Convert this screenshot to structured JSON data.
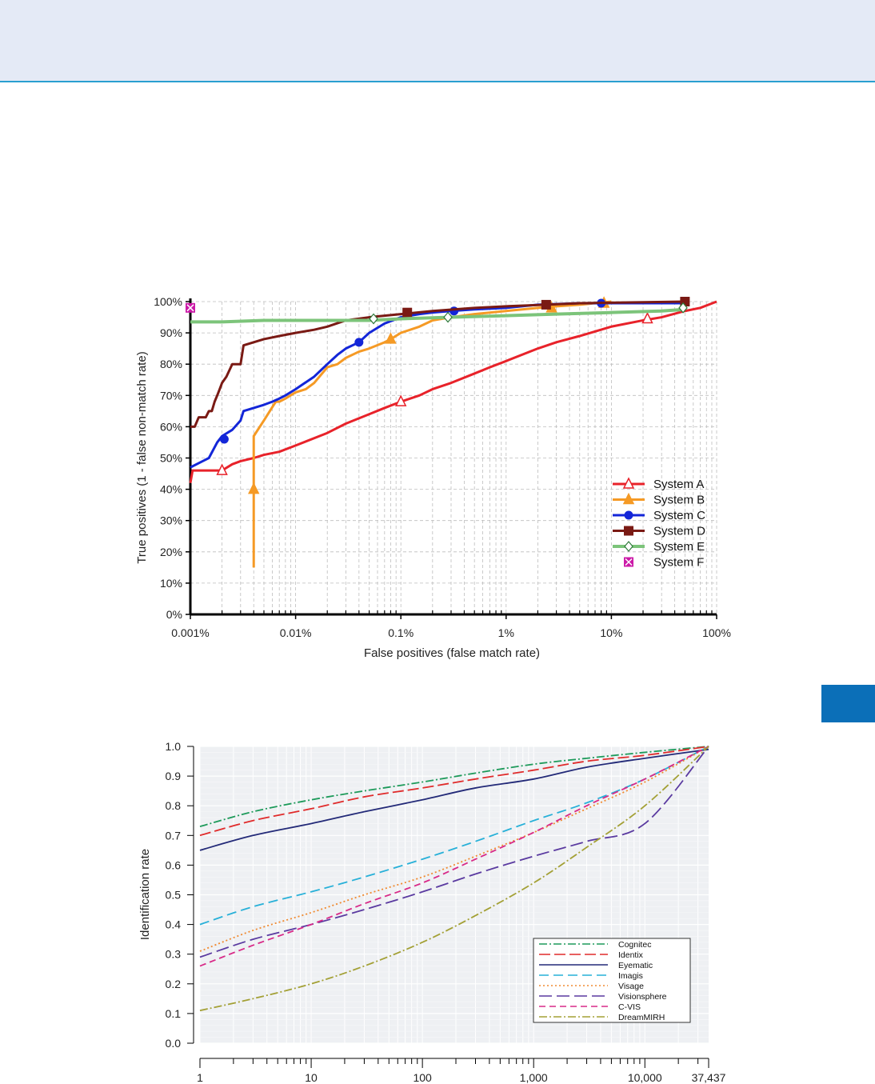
{
  "colors": {
    "header_band": "#e4eaf6",
    "header_rule": "#2a9fd0",
    "side_tab": "#0b6fb8"
  },
  "chart_data": [
    {
      "type": "line",
      "title": "",
      "xlabel": "False positives (false match rate)",
      "ylabel": "True positives (1 - false non-match rate)",
      "x_scale": "log",
      "xlim": [
        0.001,
        100
      ],
      "ylim": [
        0,
        100
      ],
      "x_ticks": [
        0.001,
        0.01,
        0.1,
        1,
        10,
        100
      ],
      "x_tick_labels": [
        "0.001%",
        "0.01%",
        "0.1%",
        "1%",
        "10%",
        "100%"
      ],
      "y_ticks": [
        0,
        10,
        20,
        30,
        40,
        50,
        60,
        70,
        80,
        90,
        100
      ],
      "y_tick_labels": [
        "0%",
        "10%",
        "20%",
        "30%",
        "40%",
        "50%",
        "60%",
        "70%",
        "80%",
        "90%",
        "100%"
      ],
      "grid": true,
      "legend_position": "bottom-right",
      "series": [
        {
          "name": "System A",
          "color": "#e8222a",
          "marker": "triangle-open",
          "x": [
            0.001,
            0.00105,
            0.0011,
            0.0015,
            0.002,
            0.0025,
            0.003,
            0.004,
            0.005,
            0.007,
            0.01,
            0.02,
            0.03,
            0.05,
            0.07,
            0.1,
            0.15,
            0.2,
            0.3,
            0.5,
            0.7,
            1,
            2,
            3,
            5,
            10,
            20,
            30,
            50,
            70,
            100
          ],
          "y": [
            42,
            46,
            46,
            46,
            46,
            48,
            49,
            50,
            51,
            52,
            54,
            58,
            61,
            64,
            66,
            68,
            70,
            72,
            74,
            77,
            79,
            81,
            85,
            87,
            89,
            92,
            94,
            95,
            97,
            98,
            100
          ],
          "markers_x": [
            0.002,
            0.1,
            22
          ],
          "markers_y": [
            46,
            68,
            94.5
          ]
        },
        {
          "name": "System B",
          "color": "#f59a25",
          "marker": "triangle",
          "x": [
            0.004,
            0.004,
            0.004,
            0.005,
            0.0062,
            0.0065,
            0.007,
            0.008,
            0.01,
            0.0125,
            0.015,
            0.02,
            0.025,
            0.03,
            0.04,
            0.05,
            0.07,
            0.08,
            0.1,
            0.15,
            0.2,
            0.3,
            0.5,
            1,
            2,
            3,
            5,
            10
          ],
          "y": [
            15,
            40,
            57,
            62,
            67,
            68,
            68,
            69,
            71,
            72,
            74,
            79,
            80,
            82,
            84,
            85,
            87,
            88,
            90,
            92,
            94,
            95,
            96,
            97,
            98,
            98.5,
            99,
            100
          ],
          "markers_x": [
            0.004,
            0.08,
            2.7,
            8.5
          ],
          "markers_y": [
            40,
            88,
            98,
            99.5
          ]
        },
        {
          "name": "System C",
          "color": "#1326d8",
          "marker": "circle",
          "x": [
            0.001,
            0.0015,
            0.0018,
            0.002,
            0.0025,
            0.003,
            0.0032,
            0.004,
            0.005,
            0.006,
            0.007,
            0.008,
            0.01,
            0.015,
            0.02,
            0.025,
            0.03,
            0.04,
            0.05,
            0.07,
            0.1,
            0.15,
            0.2,
            0.3,
            0.5,
            1,
            2,
            5,
            8,
            20,
            50
          ],
          "y": [
            47,
            50,
            55,
            57,
            59,
            62,
            65,
            66,
            67,
            68,
            69,
            70,
            72,
            76,
            80,
            83,
            85,
            87,
            90,
            93,
            95,
            96,
            96.5,
            97,
            97.5,
            98,
            99,
            99.5,
            99.5,
            99.5,
            99.5
          ],
          "markers_x": [
            0.0021,
            0.04,
            0.32,
            8
          ],
          "markers_y": [
            56,
            87,
            97,
            99.5
          ]
        },
        {
          "name": "System D",
          "color": "#7a1a14",
          "marker": "square",
          "x": [
            0.001,
            0.0011,
            0.0012,
            0.0013,
            0.0014,
            0.0015,
            0.0016,
            0.0017,
            0.0018,
            0.0019,
            0.002,
            0.0022,
            0.0025,
            0.003,
            0.0032,
            0.004,
            0.005,
            0.007,
            0.01,
            0.015,
            0.02,
            0.03,
            0.05,
            0.1,
            0.2,
            0.5,
            1,
            2.4,
            5,
            50
          ],
          "y": [
            60,
            60,
            63,
            63,
            63,
            65,
            65,
            68,
            70,
            72,
            74,
            76,
            80,
            80,
            86,
            87,
            88,
            89,
            90,
            91,
            92,
            94,
            95,
            96,
            97,
            98,
            98.5,
            99,
            99.5,
            100
          ],
          "markers_x": [
            0.115,
            2.4,
            50
          ],
          "markers_y": [
            96.5,
            99,
            100
          ]
        },
        {
          "name": "System E",
          "color": "#7cc47a",
          "marker": "diamond-open",
          "x": [
            0.001,
            0.002,
            0.005,
            0.01,
            0.05,
            0.1,
            0.3,
            1,
            3,
            10,
            30,
            50
          ],
          "y": [
            93.5,
            93.5,
            94,
            94,
            94,
            94.5,
            95,
            95.5,
            96,
            96.5,
            97,
            97.5
          ],
          "markers_x": [
            0.055,
            0.28,
            48
          ],
          "markers_y": [
            94.5,
            95,
            98
          ]
        },
        {
          "name": "System F",
          "color": "#cc1aa8",
          "marker": "square-x",
          "x": [
            0.001
          ],
          "y": [
            98
          ],
          "markers_x": [
            0.001
          ],
          "markers_y": [
            98
          ]
        }
      ]
    },
    {
      "type": "line",
      "title": "",
      "xlabel": "",
      "ylabel": "Identification rate",
      "x_scale": "log",
      "xlim": [
        1,
        37437
      ],
      "ylim": [
        0,
        1
      ],
      "x_ticks": [
        1,
        10,
        100,
        1000,
        10000,
        37437
      ],
      "x_tick_labels": [
        "1",
        "10",
        "100",
        "1,000",
        "10,000",
        "37,437"
      ],
      "y_ticks": [
        0,
        0.1,
        0.2,
        0.3,
        0.4,
        0.5,
        0.6,
        0.7,
        0.8,
        0.9,
        1.0
      ],
      "y_tick_labels": [
        "0.0",
        "0.1",
        "0.2",
        "0.3",
        "0.4",
        "0.5",
        "0.6",
        "0.7",
        "0.8",
        "0.9",
        "1.0"
      ],
      "grid": true,
      "legend_position": "bottom-right",
      "series": [
        {
          "name": "Cognitec",
          "color": "#1d9a5a",
          "dash": "10 3 2 3",
          "x": [
            1,
            3,
            10,
            30,
            100,
            300,
            1000,
            3000,
            10000,
            37437
          ],
          "y": [
            0.73,
            0.78,
            0.82,
            0.85,
            0.88,
            0.91,
            0.94,
            0.96,
            0.98,
            1.0
          ]
        },
        {
          "name": "Identix",
          "color": "#e02b2b",
          "dash": "14 5",
          "x": [
            1,
            3,
            10,
            30,
            100,
            300,
            1000,
            3000,
            10000,
            37437
          ],
          "y": [
            0.7,
            0.75,
            0.79,
            0.83,
            0.86,
            0.89,
            0.92,
            0.95,
            0.97,
            1.0
          ]
        },
        {
          "name": "Eyematic",
          "color": "#232a78",
          "dash": "",
          "x": [
            1,
            3,
            10,
            30,
            100,
            300,
            1000,
            3000,
            10000,
            37437
          ],
          "y": [
            0.65,
            0.7,
            0.74,
            0.78,
            0.82,
            0.86,
            0.89,
            0.93,
            0.96,
            0.99
          ]
        },
        {
          "name": "Imagis",
          "color": "#27b0d8",
          "dash": "12 6",
          "x": [
            1,
            3,
            10,
            30,
            100,
            300,
            1000,
            3000,
            10000,
            37437
          ],
          "y": [
            0.4,
            0.46,
            0.51,
            0.56,
            0.62,
            0.68,
            0.75,
            0.81,
            0.89,
            1.0
          ]
        },
        {
          "name": "Visage",
          "color": "#f08a30",
          "dash": "2 3",
          "x": [
            1,
            3,
            10,
            30,
            100,
            300,
            1000,
            3000,
            10000,
            37437
          ],
          "y": [
            0.31,
            0.38,
            0.44,
            0.5,
            0.56,
            0.63,
            0.71,
            0.79,
            0.88,
            1.0
          ]
        },
        {
          "name": "Visionsphere",
          "color": "#5a3aa0",
          "dash": "16 6",
          "x": [
            1,
            3,
            10,
            30,
            100,
            300,
            1000,
            3000,
            10000,
            37437
          ],
          "y": [
            0.29,
            0.35,
            0.4,
            0.45,
            0.51,
            0.57,
            0.63,
            0.68,
            0.74,
            1.0
          ]
        },
        {
          "name": "C-VIS",
          "color": "#d82a88",
          "dash": "8 5",
          "x": [
            1,
            3,
            10,
            30,
            100,
            300,
            1000,
            3000,
            10000,
            37437
          ],
          "y": [
            0.26,
            0.33,
            0.4,
            0.47,
            0.54,
            0.62,
            0.71,
            0.8,
            0.89,
            1.0
          ]
        },
        {
          "name": "DreamMIRH",
          "color": "#a3a035",
          "dash": "10 3 2 3",
          "x": [
            1,
            3,
            10,
            30,
            100,
            300,
            1000,
            3000,
            10000,
            37437
          ],
          "y": [
            0.11,
            0.15,
            0.2,
            0.26,
            0.34,
            0.43,
            0.54,
            0.66,
            0.8,
            1.0
          ]
        }
      ]
    }
  ]
}
